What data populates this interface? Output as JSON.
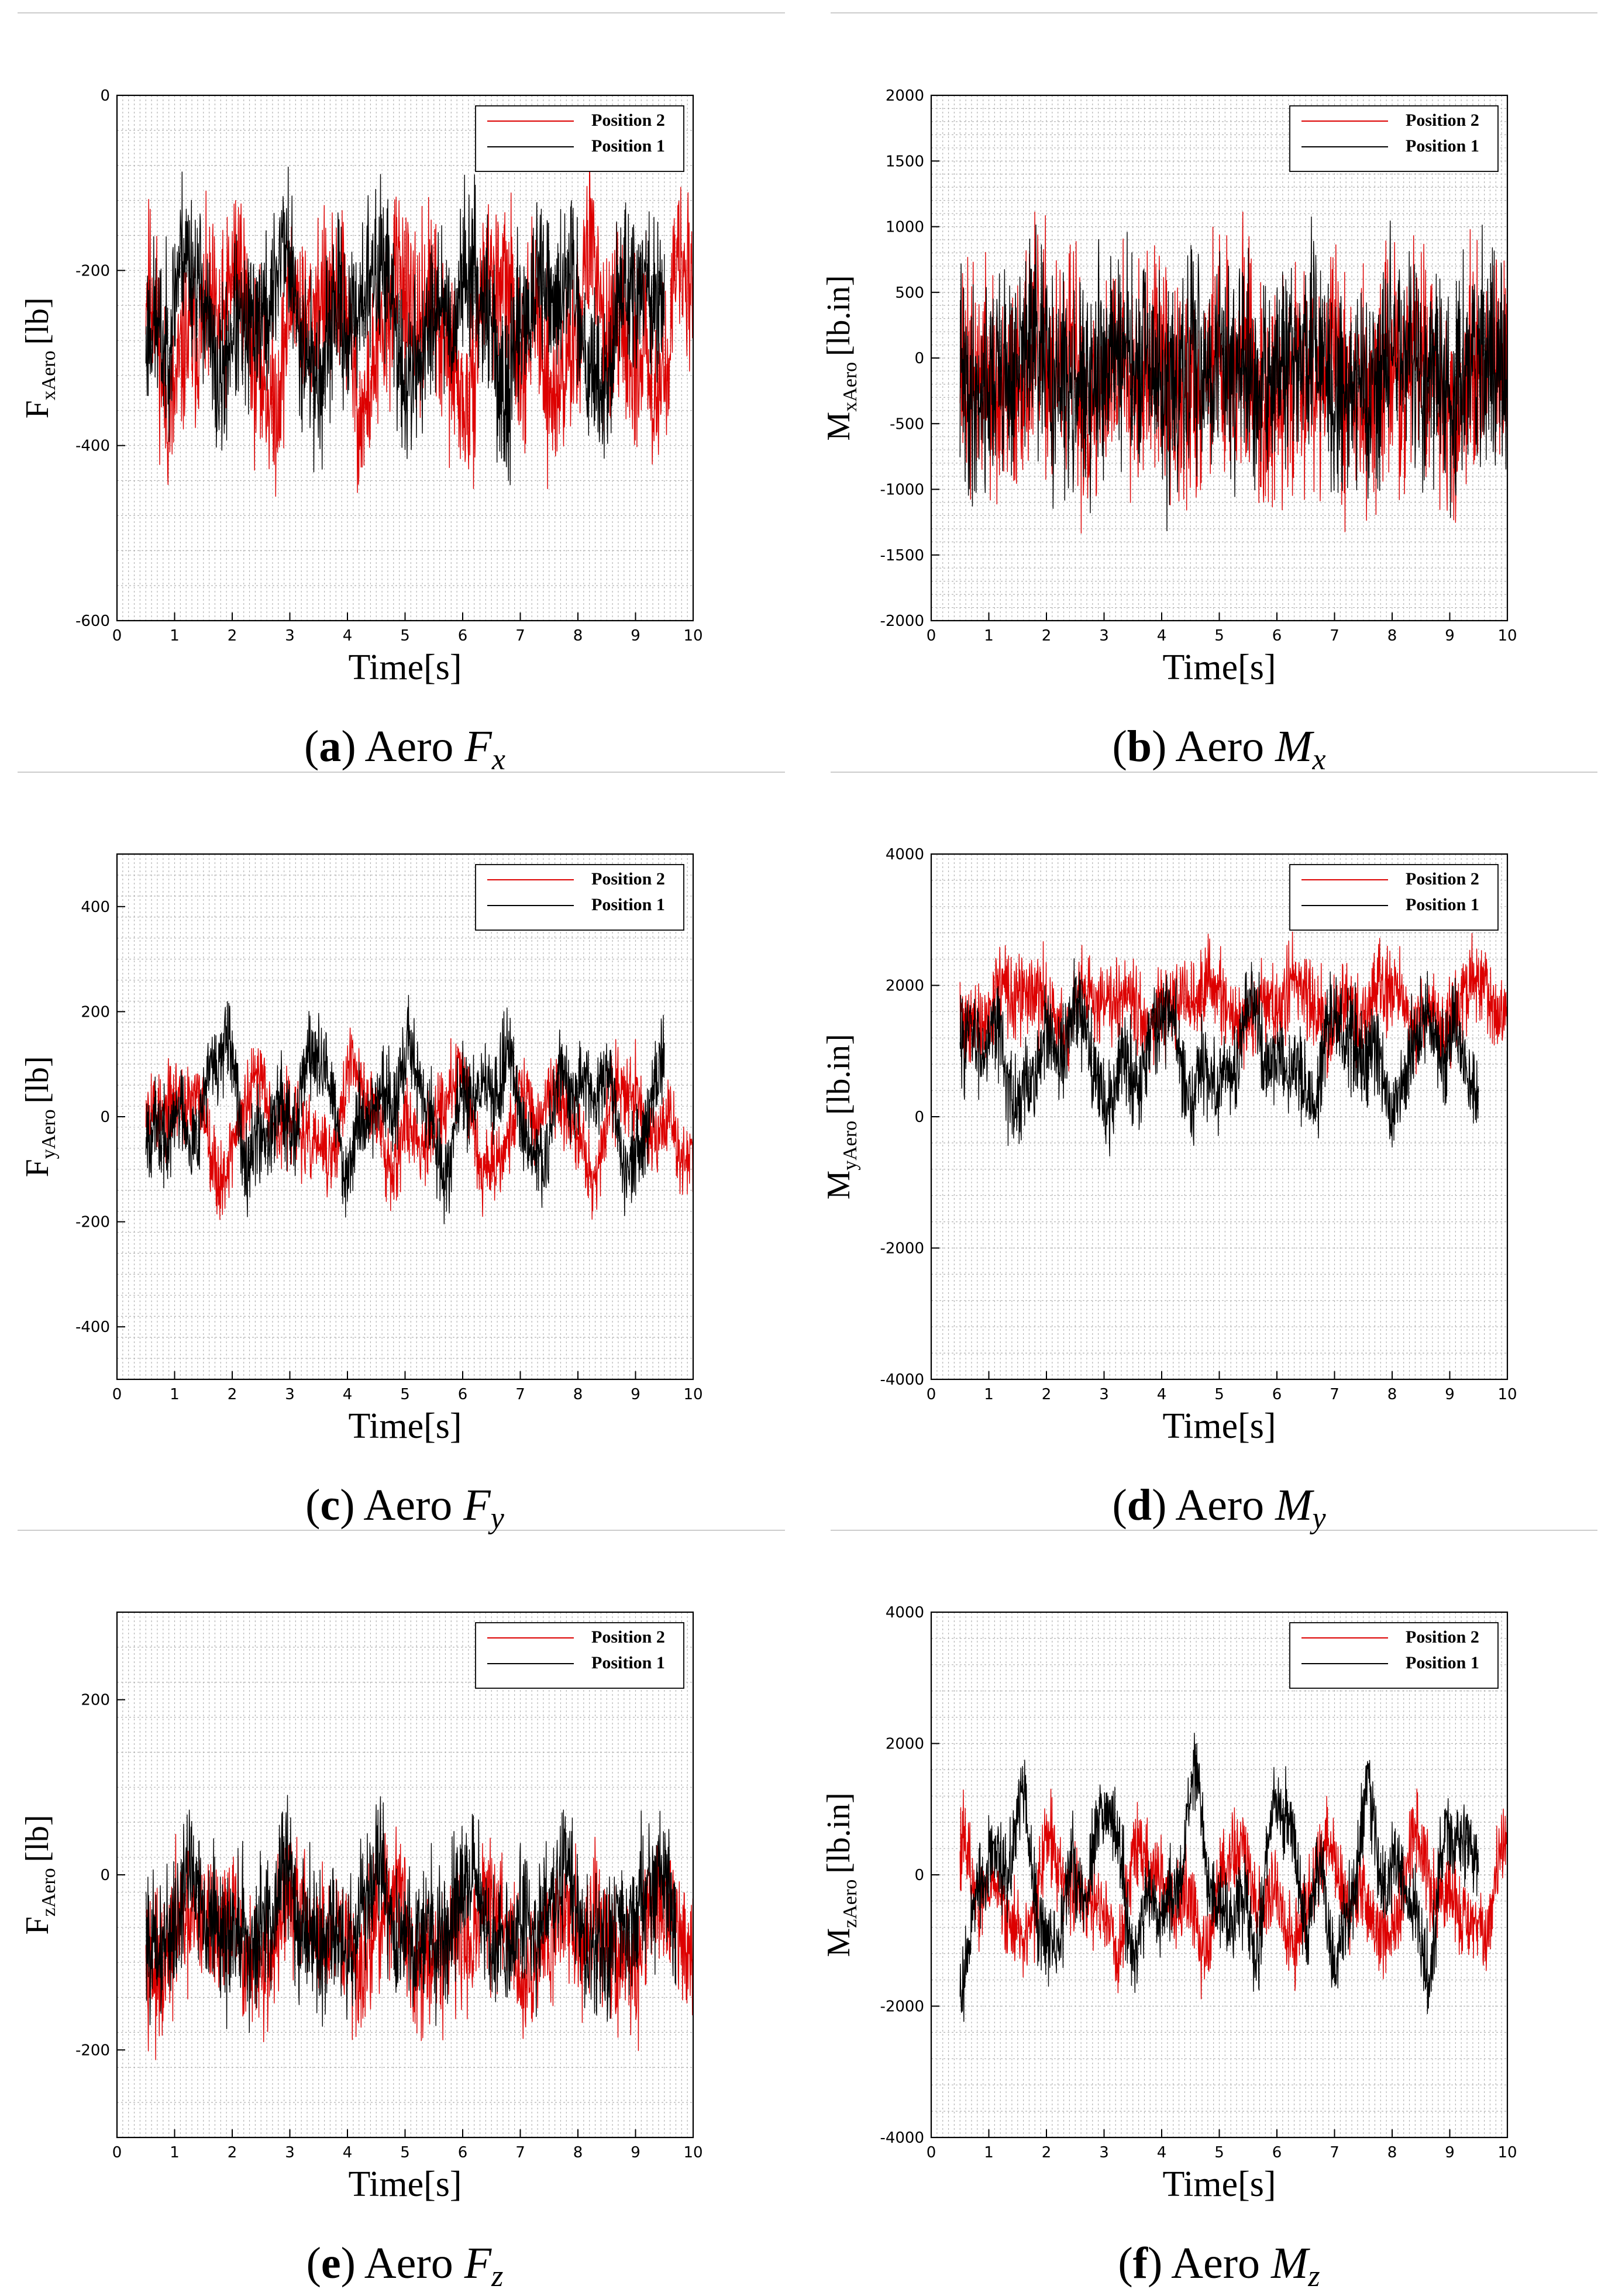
{
  "chart_data": [
    {
      "type": "line",
      "panel": "a",
      "caption": {
        "letter": "a",
        "text": "Aero",
        "symbol": "F",
        "subscript": "x"
      },
      "ylabel": {
        "main": "F",
        "sub": "xAero",
        "unit": "[lb]"
      },
      "xlabel": "Time[s]",
      "xlim": [
        0,
        10
      ],
      "ylim": [
        -600,
        0
      ],
      "xticks": [
        0,
        1,
        2,
        3,
        4,
        5,
        6,
        7,
        8,
        9,
        10
      ],
      "yticks": [
        -600,
        -400,
        -200,
        0
      ],
      "series": [
        {
          "name": "Position 2",
          "color": "#dd0000",
          "t_start": 0.5,
          "t_end": 10.0,
          "mean": -270,
          "amp": 95,
          "noise": 70,
          "seed": 11
        },
        {
          "name": "Position 1",
          "color": "#000000",
          "t_start": 0.5,
          "t_end": 9.5,
          "mean": -255,
          "amp": 90,
          "noise": 65,
          "seed": 23
        }
      ]
    },
    {
      "type": "line",
      "panel": "b",
      "caption": {
        "letter": "b",
        "text": "Aero",
        "symbol": "M",
        "subscript": "x"
      },
      "ylabel": {
        "main": "M",
        "sub": "xAero",
        "unit": "[lb.in]"
      },
      "xlabel": "Time[s]",
      "xlim": [
        0,
        10
      ],
      "ylim": [
        -2000,
        2000
      ],
      "xticks": [
        0,
        1,
        2,
        3,
        4,
        5,
        6,
        7,
        8,
        9,
        10
      ],
      "yticks": [
        -2000,
        -1500,
        -1000,
        -500,
        0,
        500,
        1000,
        1500,
        2000
      ],
      "series": [
        {
          "name": "Position 2",
          "color": "#dd0000",
          "t_start": 0.5,
          "t_end": 10.0,
          "mean": -150,
          "amp": 300,
          "noise": 600,
          "seed": 37
        },
        {
          "name": "Position 1",
          "color": "#000000",
          "t_start": 0.5,
          "t_end": 10.0,
          "mean": -100,
          "amp": 250,
          "noise": 550,
          "seed": 41
        }
      ]
    },
    {
      "type": "line",
      "panel": "c",
      "caption": {
        "letter": "c",
        "text": "Aero",
        "symbol": "F",
        "subscript": "y"
      },
      "ylabel": {
        "main": "F",
        "sub": "yAero",
        "unit": "[lb]"
      },
      "xlabel": "Time[s]",
      "xlim": [
        0,
        10
      ],
      "ylim": [
        -500,
        500
      ],
      "xticks": [
        0,
        1,
        2,
        3,
        4,
        5,
        6,
        7,
        8,
        9,
        10
      ],
      "yticks": [
        -400,
        -200,
        0,
        200,
        400
      ],
      "series": [
        {
          "name": "Position 2",
          "color": "#dd0000",
          "t_start": 0.5,
          "t_end": 10.0,
          "mean": -10,
          "amp": 110,
          "noise": 55,
          "seed": 53
        },
        {
          "name": "Position 1",
          "color": "#000000",
          "t_start": 0.5,
          "t_end": 9.5,
          "mean": 20,
          "amp": 130,
          "noise": 60,
          "seed": 67
        }
      ]
    },
    {
      "type": "line",
      "panel": "d",
      "caption": {
        "letter": "d",
        "text": "Aero",
        "symbol": "M",
        "subscript": "y"
      },
      "ylabel": {
        "main": "M",
        "sub": "yAero",
        "unit": "[lb.in]"
      },
      "xlabel": "Time[s]",
      "xlim": [
        0,
        10
      ],
      "ylim": [
        -4000,
        4000
      ],
      "xticks": [
        0,
        1,
        2,
        3,
        4,
        5,
        6,
        7,
        8,
        9,
        10
      ],
      "yticks": [
        -4000,
        -2000,
        0,
        2000,
        4000
      ],
      "series": [
        {
          "name": "Position 2",
          "color": "#dd0000",
          "t_start": 0.5,
          "t_end": 10.0,
          "mean": 1700,
          "amp": 450,
          "noise": 450,
          "seed": 71
        },
        {
          "name": "Position 1",
          "color": "#000000",
          "t_start": 0.5,
          "t_end": 9.5,
          "mean": 900,
          "amp": 900,
          "noise": 500,
          "seed": 83
        }
      ]
    },
    {
      "type": "line",
      "panel": "e",
      "caption": {
        "letter": "e",
        "text": "Aero",
        "symbol": "F",
        "subscript": "z"
      },
      "ylabel": {
        "main": "F",
        "sub": "zAero",
        "unit": "[lb]"
      },
      "xlabel": "Time[s]",
      "xlim": [
        0,
        10
      ],
      "ylim": [
        -300,
        300
      ],
      "xticks": [
        0,
        1,
        2,
        3,
        4,
        5,
        6,
        7,
        8,
        9,
        10
      ],
      "yticks": [
        -200,
        0,
        200
      ],
      "series": [
        {
          "name": "Position 2",
          "color": "#dd0000",
          "t_start": 0.5,
          "t_end": 10.0,
          "mean": -70,
          "amp": 50,
          "noise": 55,
          "seed": 97
        },
        {
          "name": "Position 1",
          "color": "#000000",
          "t_start": 0.5,
          "t_end": 9.7,
          "mean": -50,
          "amp": 60,
          "noise": 55,
          "seed": 101
        }
      ]
    },
    {
      "type": "line",
      "panel": "f",
      "caption": {
        "letter": "f",
        "text": "Aero",
        "symbol": "M",
        "subscript": "z"
      },
      "ylabel": {
        "main": "M",
        "sub": "zAero",
        "unit": "[lb.in]"
      },
      "xlabel": "Time[s]",
      "xlim": [
        0,
        10
      ],
      "ylim": [
        -4000,
        4000
      ],
      "xticks": [
        0,
        1,
        2,
        3,
        4,
        5,
        6,
        7,
        8,
        9,
        10
      ],
      "yticks": [
        -4000,
        -2000,
        0,
        2000,
        4000
      ],
      "series": [
        {
          "name": "Position 2",
          "color": "#dd0000",
          "t_start": 0.5,
          "t_end": 10.0,
          "mean": -300,
          "amp": 900,
          "noise": 450,
          "seed": 113
        },
        {
          "name": "Position 1",
          "color": "#000000",
          "t_start": 0.5,
          "t_end": 9.5,
          "mean": -100,
          "amp": 1500,
          "noise": 450,
          "seed": 127
        }
      ]
    }
  ]
}
